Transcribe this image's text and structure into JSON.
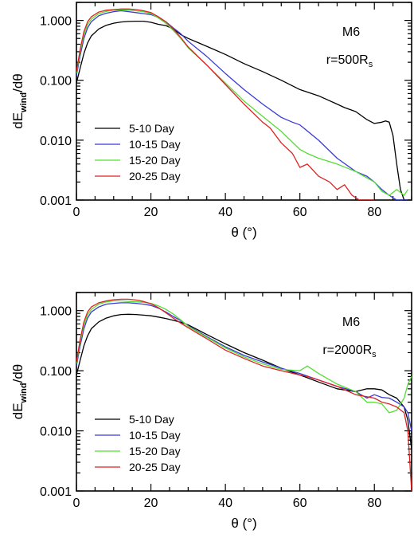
{
  "chart_data": [
    {
      "type": "line",
      "annotation_model": "M6",
      "annotation_radius": "r=500R",
      "annotation_radius_sub": "s",
      "xlabel": "θ (°)",
      "ylabel": "dĖwind/dθ",
      "ylabel_main": "dE",
      "ylabel_sub": "wind",
      "ylabel_tail": "/dθ",
      "xlim": [
        0,
        90
      ],
      "ylim": [
        0.001,
        2.0
      ],
      "yscale": "log",
      "xticks": [
        0,
        20,
        40,
        60,
        80
      ],
      "yticks": [
        0.001,
        0.01,
        0.1,
        1.0
      ],
      "ytick_labels": [
        "0.001",
        "0.010",
        "0.100",
        "1.000"
      ],
      "legend_position": "bottom-left",
      "series": [
        {
          "name": "5-10 Day",
          "color": "#000000",
          "x": [
            0,
            1,
            2,
            3,
            4,
            6,
            8,
            10,
            12,
            14,
            16,
            18,
            20,
            22,
            24,
            26,
            28,
            30,
            35,
            40,
            45,
            50,
            55,
            60,
            65,
            70,
            72,
            75,
            78,
            80,
            82,
            83,
            84,
            85,
            86,
            87,
            88,
            89
          ],
          "y": [
            0.09,
            0.16,
            0.28,
            0.42,
            0.55,
            0.72,
            0.83,
            0.9,
            0.94,
            0.96,
            0.97,
            0.97,
            0.93,
            0.86,
            0.82,
            0.72,
            0.58,
            0.5,
            0.37,
            0.27,
            0.19,
            0.14,
            0.1,
            0.07,
            0.055,
            0.04,
            0.035,
            0.03,
            0.022,
            0.019,
            0.02,
            0.021,
            0.02,
            0.012,
            0.004,
            0.0015,
            0.001,
            0.001
          ]
        },
        {
          "name": "10-15 Day",
          "color": "#3a3ad8",
          "x": [
            0,
            1,
            2,
            3,
            4,
            6,
            8,
            10,
            12,
            14,
            16,
            18,
            20,
            22,
            24,
            26,
            28,
            30,
            35,
            40,
            45,
            50,
            55,
            58,
            60,
            65,
            70,
            75,
            78,
            80,
            82,
            84,
            86,
            87,
            88,
            89
          ],
          "y": [
            0.12,
            0.26,
            0.5,
            0.75,
            0.95,
            1.2,
            1.32,
            1.4,
            1.45,
            1.4,
            1.35,
            1.3,
            1.25,
            1.12,
            0.95,
            0.75,
            0.6,
            0.45,
            0.25,
            0.13,
            0.07,
            0.04,
            0.024,
            0.02,
            0.018,
            0.01,
            0.005,
            0.003,
            0.0025,
            0.002,
            0.0015,
            0.0012,
            0.001,
            0.001,
            0.001,
            0.001
          ]
        },
        {
          "name": "15-20 Day",
          "color": "#55dd33",
          "x": [
            0,
            1,
            2,
            3,
            4,
            6,
            8,
            10,
            12,
            14,
            16,
            18,
            20,
            22,
            24,
            26,
            28,
            30,
            35,
            40,
            45,
            50,
            55,
            60,
            62,
            65,
            70,
            75,
            80,
            82,
            84,
            86,
            88,
            89
          ],
          "y": [
            0.13,
            0.3,
            0.58,
            0.85,
            1.05,
            1.3,
            1.42,
            1.48,
            1.5,
            1.48,
            1.45,
            1.4,
            1.3,
            1.1,
            0.9,
            0.68,
            0.5,
            0.35,
            0.18,
            0.09,
            0.045,
            0.025,
            0.014,
            0.007,
            0.006,
            0.005,
            0.004,
            0.003,
            0.002,
            0.0014,
            0.0012,
            0.0015,
            0.0012,
            0.0015
          ]
        },
        {
          "name": "20-25 Day",
          "color": "#dd2222",
          "x": [
            0,
            1,
            2,
            3,
            4,
            6,
            8,
            10,
            12,
            14,
            16,
            18,
            20,
            22,
            24,
            26,
            28,
            30,
            35,
            40,
            45,
            50,
            52,
            55,
            58,
            60,
            62,
            65,
            68,
            70,
            72,
            74,
            76,
            78,
            80
          ],
          "y": [
            0.14,
            0.33,
            0.65,
            0.95,
            1.15,
            1.38,
            1.48,
            1.52,
            1.55,
            1.55,
            1.52,
            1.45,
            1.35,
            1.15,
            0.95,
            0.72,
            0.52,
            0.36,
            0.18,
            0.085,
            0.04,
            0.02,
            0.016,
            0.009,
            0.006,
            0.0035,
            0.004,
            0.0025,
            0.002,
            0.0015,
            0.0018,
            0.0012,
            0.001,
            0.001,
            0.001
          ]
        }
      ]
    },
    {
      "type": "line",
      "annotation_model": "M6",
      "annotation_radius": "r=2000R",
      "annotation_radius_sub": "s",
      "xlabel": "θ (°)",
      "ylabel": "dĖwind/dθ",
      "ylabel_main": "dE",
      "ylabel_sub": "wind",
      "ylabel_tail": "/dθ",
      "xlim": [
        0,
        90
      ],
      "ylim": [
        0.001,
        2.0
      ],
      "yscale": "log",
      "xticks": [
        0,
        20,
        40,
        60,
        80
      ],
      "yticks": [
        0.001,
        0.01,
        0.1,
        1.0
      ],
      "ytick_labels": [
        "0.001",
        "0.010",
        "0.100",
        "1.000"
      ],
      "legend_position": "bottom-left",
      "series": [
        {
          "name": "5-10 Day",
          "color": "#000000",
          "x": [
            0,
            1,
            2,
            3,
            4,
            6,
            8,
            10,
            12,
            14,
            16,
            18,
            20,
            22,
            24,
            26,
            28,
            30,
            35,
            40,
            45,
            50,
            55,
            60,
            65,
            70,
            75,
            78,
            80,
            82,
            84,
            86,
            88,
            89,
            90
          ],
          "y": [
            0.085,
            0.15,
            0.26,
            0.38,
            0.5,
            0.65,
            0.75,
            0.82,
            0.86,
            0.87,
            0.86,
            0.84,
            0.82,
            0.78,
            0.74,
            0.69,
            0.64,
            0.58,
            0.4,
            0.28,
            0.2,
            0.15,
            0.11,
            0.085,
            0.065,
            0.05,
            0.045,
            0.05,
            0.05,
            0.048,
            0.04,
            0.035,
            0.025,
            0.015,
            0.005
          ]
        },
        {
          "name": "10-15 Day",
          "color": "#3a3ad8",
          "x": [
            0,
            1,
            2,
            3,
            4,
            6,
            8,
            10,
            12,
            14,
            16,
            18,
            20,
            22,
            24,
            26,
            28,
            30,
            35,
            40,
            45,
            50,
            55,
            60,
            65,
            70,
            75,
            78,
            80,
            82,
            84,
            86,
            88,
            89,
            90
          ],
          "y": [
            0.12,
            0.26,
            0.5,
            0.75,
            0.95,
            1.15,
            1.28,
            1.32,
            1.35,
            1.35,
            1.32,
            1.28,
            1.22,
            1.1,
            0.95,
            0.8,
            0.68,
            0.56,
            0.37,
            0.25,
            0.18,
            0.14,
            0.11,
            0.09,
            0.07,
            0.055,
            0.045,
            0.035,
            0.04,
            0.036,
            0.035,
            0.03,
            0.025,
            0.02,
            0.01
          ]
        },
        {
          "name": "15-20 Day",
          "color": "#55dd33",
          "x": [
            0,
            1,
            2,
            3,
            4,
            6,
            8,
            10,
            12,
            14,
            16,
            18,
            20,
            22,
            24,
            26,
            28,
            30,
            35,
            40,
            45,
            50,
            55,
            60,
            62,
            65,
            70,
            75,
            78,
            80,
            82,
            84,
            86,
            88,
            89,
            90
          ],
          "y": [
            0.13,
            0.3,
            0.58,
            0.85,
            1.05,
            1.28,
            1.4,
            1.45,
            1.45,
            1.42,
            1.4,
            1.38,
            1.32,
            1.2,
            1.05,
            0.88,
            0.7,
            0.55,
            0.36,
            0.24,
            0.17,
            0.13,
            0.105,
            0.1,
            0.12,
            0.09,
            0.06,
            0.045,
            0.03,
            0.03,
            0.028,
            0.02,
            0.022,
            0.035,
            0.06,
            0.08
          ]
        },
        {
          "name": "20-25 Day",
          "color": "#dd2222",
          "x": [
            0,
            1,
            2,
            3,
            4,
            6,
            8,
            10,
            12,
            14,
            16,
            18,
            20,
            22,
            24,
            26,
            28,
            30,
            35,
            40,
            45,
            50,
            55,
            60,
            62,
            65,
            70,
            75,
            80,
            82,
            84,
            86,
            88,
            89,
            90
          ],
          "y": [
            0.14,
            0.33,
            0.65,
            0.95,
            1.15,
            1.35,
            1.45,
            1.52,
            1.55,
            1.55,
            1.5,
            1.42,
            1.3,
            1.12,
            0.92,
            0.75,
            0.62,
            0.52,
            0.34,
            0.22,
            0.16,
            0.12,
            0.1,
            0.085,
            0.08,
            0.07,
            0.055,
            0.04,
            0.035,
            0.03,
            0.028,
            0.025,
            0.02,
            0.01,
            0.001
          ]
        }
      ]
    }
  ]
}
